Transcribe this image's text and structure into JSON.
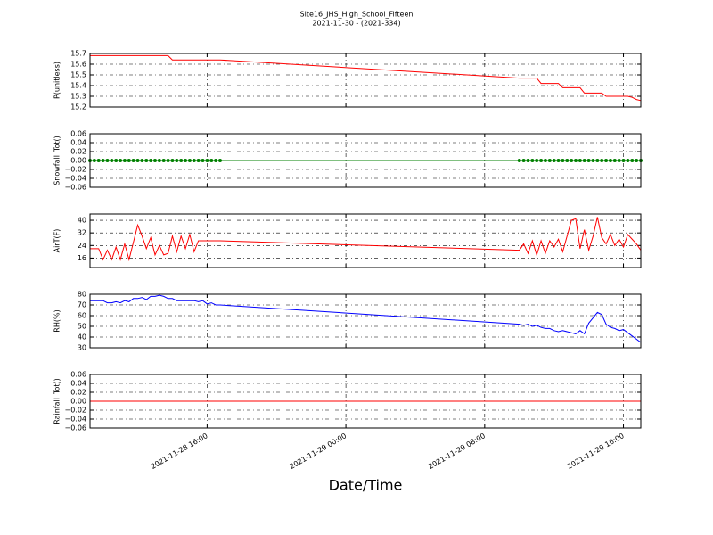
{
  "title": "Site16_JHS_High_School_Fifteen",
  "subtitle": "2021-11-30 - (2021-334)",
  "xlabel": "Date/Time",
  "xlim": [
    "2021-11-28 09:15",
    "2021-11-29 17:00"
  ],
  "xticks": [
    "2021-11-28 16:00",
    "2021-11-29 00:00",
    "2021-11-29 08:00",
    "2021-11-29 16:00"
  ],
  "x": [
    "2021-11-28 09:15",
    "2021-11-28 09:30",
    "2021-11-28 09:45",
    "2021-11-28 10:00",
    "2021-11-28 10:15",
    "2021-11-28 10:30",
    "2021-11-28 10:45",
    "2021-11-28 11:00",
    "2021-11-28 11:15",
    "2021-11-28 11:30",
    "2021-11-28 11:45",
    "2021-11-28 12:00",
    "2021-11-28 12:15",
    "2021-11-28 12:30",
    "2021-11-28 12:45",
    "2021-11-28 13:00",
    "2021-11-28 13:15",
    "2021-11-28 13:30",
    "2021-11-28 13:45",
    "2021-11-28 14:00",
    "2021-11-28 14:15",
    "2021-11-28 14:30",
    "2021-11-28 14:45",
    "2021-11-28 15:00",
    "2021-11-28 15:15",
    "2021-11-28 15:30",
    "2021-11-28 15:45",
    "2021-11-28 16:00",
    "2021-11-28 16:15",
    "2021-11-28 16:30",
    "2021-11-28 16:45",
    "2021-11-29 10:00",
    "2021-11-29 10:15",
    "2021-11-29 10:30",
    "2021-11-29 10:45",
    "2021-11-29 11:00",
    "2021-11-29 11:15",
    "2021-11-29 11:30",
    "2021-11-29 11:45",
    "2021-11-29 12:00",
    "2021-11-29 12:15",
    "2021-11-29 12:30",
    "2021-11-29 12:45",
    "2021-11-29 13:00",
    "2021-11-29 13:15",
    "2021-11-29 13:30",
    "2021-11-29 13:45",
    "2021-11-29 14:00",
    "2021-11-29 14:15",
    "2021-11-29 14:30",
    "2021-11-29 14:45",
    "2021-11-29 15:00",
    "2021-11-29 15:15",
    "2021-11-29 15:30",
    "2021-11-29 15:45",
    "2021-11-29 16:00",
    "2021-11-29 16:15",
    "2021-11-29 16:30",
    "2021-11-29 16:45",
    "2021-11-29 17:00"
  ],
  "chart_data": [
    {
      "type": "line",
      "ylabel": "P(unitless)",
      "ylim": [
        15.2,
        15.7
      ],
      "yticks": [
        15.2,
        15.3,
        15.4,
        15.5,
        15.6,
        15.7
      ],
      "grid": true,
      "series": [
        {
          "color": "#ff0000",
          "marker": false,
          "values": [
            15.68,
            15.68,
            15.68,
            15.68,
            15.68,
            15.68,
            15.68,
            15.68,
            15.68,
            15.68,
            15.68,
            15.68,
            15.68,
            15.68,
            15.68,
            15.68,
            15.68,
            15.68,
            15.68,
            15.64,
            15.64,
            15.64,
            15.64,
            15.64,
            15.64,
            15.64,
            15.64,
            15.64,
            15.64,
            15.64,
            15.64,
            15.47,
            15.47,
            15.47,
            15.47,
            15.47,
            15.42,
            15.42,
            15.42,
            15.42,
            15.42,
            15.38,
            15.38,
            15.38,
            15.38,
            15.38,
            15.33,
            15.33,
            15.33,
            15.33,
            15.33,
            15.3,
            15.3,
            15.3,
            15.3,
            15.3,
            15.3,
            15.29,
            15.27,
            15.26
          ]
        }
      ]
    },
    {
      "type": "line",
      "ylabel": "Snowfall_Tot()",
      "ylim": [
        -0.06,
        0.06
      ],
      "yticks": [
        {
          "value": -0.06,
          "label": "−0.06"
        },
        {
          "value": -0.04,
          "label": "−0.04"
        },
        {
          "value": -0.02,
          "label": "−0.02"
        },
        {
          "value": 0,
          "label": "0.00"
        },
        0.02,
        0.04,
        0.06
      ],
      "grid": true,
      "series": [
        {
          "color": "#008000",
          "marker": true,
          "values": [
            0,
            0,
            0,
            0,
            0,
            0,
            0,
            0,
            0,
            0,
            0,
            0,
            0,
            0,
            0,
            0,
            0,
            0,
            0,
            0,
            0,
            0,
            0,
            0,
            0,
            0,
            0,
            0,
            0,
            0,
            0,
            0,
            0,
            0,
            0,
            0,
            0,
            0,
            0,
            0,
            0,
            0,
            0,
            0,
            0,
            0,
            0,
            0,
            0,
            0,
            0,
            0,
            0,
            0,
            0,
            0,
            0,
            0,
            0,
            0
          ]
        }
      ]
    },
    {
      "type": "line",
      "ylabel": "AirT(F)",
      "ylim": [
        10,
        44
      ],
      "yticks": [
        16,
        24,
        32,
        40
      ],
      "grid": true,
      "series": [
        {
          "color": "#ff0000",
          "marker": false,
          "values": [
            22,
            22,
            22,
            15,
            21,
            15,
            23,
            15,
            25,
            15,
            26,
            37,
            30,
            22,
            29,
            18,
            24,
            18,
            19,
            30,
            20,
            30,
            22,
            31,
            20,
            27,
            27,
            27,
            27,
            27,
            27,
            21,
            25,
            19,
            27,
            18,
            27,
            19,
            27,
            23,
            28,
            20,
            30,
            40,
            41,
            22,
            34,
            21,
            30,
            42,
            29,
            25,
            31,
            24,
            28,
            23,
            31,
            28,
            25,
            21
          ]
        }
      ]
    },
    {
      "type": "line",
      "ylabel": "RH(%)",
      "ylim": [
        30,
        80
      ],
      "yticks": [
        30,
        40,
        50,
        60,
        70,
        80
      ],
      "grid": true,
      "series": [
        {
          "color": "#0000ff",
          "marker": false,
          "values": [
            74,
            74,
            74,
            74,
            72,
            72,
            73,
            72,
            74,
            73,
            76,
            76,
            77,
            75,
            78,
            78,
            79,
            78,
            76,
            76,
            74,
            74,
            74,
            74,
            74,
            73,
            74,
            71,
            72,
            70,
            70,
            52,
            51,
            52,
            50,
            51,
            49,
            48,
            48,
            46,
            45,
            46,
            45,
            44,
            43,
            46,
            43,
            53,
            58,
            63,
            61,
            52,
            49,
            48,
            46,
            47,
            44,
            41,
            38,
            35
          ]
        }
      ]
    },
    {
      "type": "line",
      "ylabel": "Rainfall_Tot()",
      "ylim": [
        -0.06,
        0.06
      ],
      "yticks": [
        {
          "value": -0.06,
          "label": "−0.06"
        },
        {
          "value": -0.04,
          "label": "−0.04"
        },
        {
          "value": -0.02,
          "label": "−0.02"
        },
        {
          "value": 0,
          "label": "0.00"
        },
        0.02,
        0.04,
        0.06
      ],
      "grid": true,
      "series": [
        {
          "color": "#ff0000",
          "marker": false,
          "values": [
            0,
            0,
            0,
            0,
            0,
            0,
            0,
            0,
            0,
            0,
            0,
            0,
            0,
            0,
            0,
            0,
            0,
            0,
            0,
            0,
            0,
            0,
            0,
            0,
            0,
            0,
            0,
            0,
            0,
            0,
            0,
            0,
            0,
            0,
            0,
            0,
            0,
            0,
            0,
            0,
            0,
            0,
            0,
            0,
            0,
            0,
            0,
            0,
            0,
            0,
            0,
            0,
            0,
            0,
            0,
            0,
            0,
            0,
            0,
            0
          ]
        }
      ]
    }
  ]
}
